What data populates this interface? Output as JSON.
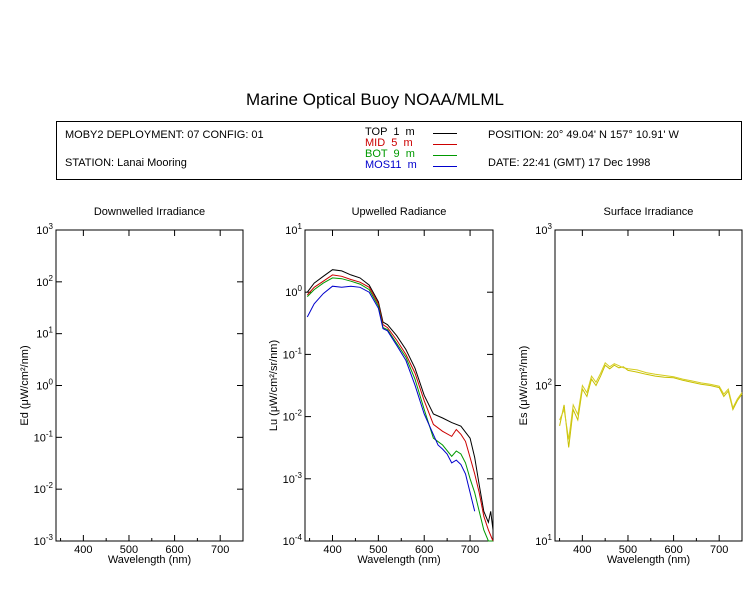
{
  "title": "Marine Optical Buoy NOAA/MLML",
  "info": {
    "deployment": "MOBY2 DEPLOYMENT: 07 CONFIG: 01",
    "station": "STATION: Lanai Mooring",
    "position": "POSITION: 20° 49.04' N   157° 10.91' W",
    "date": "DATE: 22:41 (GMT) 17 Dec 1998"
  },
  "legend": [
    {
      "label": "TOP  1  m",
      "color": "#000000"
    },
    {
      "label": "MID  5  m",
      "color": "#cc0000"
    },
    {
      "label": "BOT  9  m",
      "color": "#009900"
    },
    {
      "label": "MOS11  m",
      "color": "#0000cc"
    }
  ],
  "chart_data": [
    {
      "type": "line",
      "title": "Downwelled Irradiance",
      "xlabel": "Wavelength (nm)",
      "ylabel": "Ed  (μW/cm²/nm)",
      "xlim": [
        340,
        750
      ],
      "ylim": [
        0.001,
        1000
      ],
      "yscale": "log",
      "xticks": [
        400,
        500,
        600,
        700
      ],
      "yticks": [
        {
          "base": "10",
          "exp": "-3"
        },
        {
          "base": "10",
          "exp": "-2"
        },
        {
          "base": "10",
          "exp": "-1"
        },
        {
          "base": "10",
          "exp": "0"
        },
        {
          "base": "10",
          "exp": "1"
        },
        {
          "base": "10",
          "exp": "2"
        },
        {
          "base": "10",
          "exp": "3"
        }
      ],
      "series": []
    },
    {
      "type": "line",
      "title": "Upwelled Radiance",
      "xlabel": "Wavelength (nm)",
      "ylabel": "Lu  (μW/cm²/sr/nm)",
      "xlim": [
        340,
        750
      ],
      "ylim": [
        0.0001,
        10
      ],
      "yscale": "log",
      "xticks": [
        400,
        500,
        600,
        700
      ],
      "yticks": [
        {
          "base": "10",
          "exp": "-4"
        },
        {
          "base": "10",
          "exp": "-3"
        },
        {
          "base": "10",
          "exp": "-2"
        },
        {
          "base": "10",
          "exp": "-1"
        },
        {
          "base": "10",
          "exp": "0"
        },
        {
          "base": "10",
          "exp": "1"
        }
      ],
      "series": [
        {
          "color": "#000000",
          "x": [
            345,
            360,
            380,
            400,
            420,
            440,
            460,
            480,
            500,
            510,
            520,
            540,
            560,
            580,
            600,
            620,
            640,
            660,
            680,
            700,
            710,
            720,
            730,
            740,
            745,
            750
          ],
          "y": [
            1.0,
            1.4,
            1.8,
            2.3,
            2.2,
            1.9,
            1.7,
            1.3,
            0.7,
            0.33,
            0.3,
            0.2,
            0.12,
            0.06,
            0.022,
            0.011,
            0.0095,
            0.008,
            0.007,
            0.0045,
            0.0022,
            0.0008,
            0.0003,
            0.0002,
            0.0003,
            0.00015
          ]
        },
        {
          "color": "#cc0000",
          "x": [
            345,
            360,
            380,
            400,
            420,
            440,
            460,
            480,
            500,
            510,
            520,
            540,
            560,
            580,
            600,
            620,
            640,
            660,
            670,
            680,
            690,
            700,
            710,
            720,
            730,
            740,
            750
          ],
          "y": [
            0.9,
            1.2,
            1.5,
            1.9,
            1.8,
            1.6,
            1.45,
            1.2,
            0.65,
            0.3,
            0.27,
            0.17,
            0.1,
            0.05,
            0.018,
            0.0075,
            0.0058,
            0.0048,
            0.0062,
            0.0052,
            0.004,
            0.0022,
            0.0012,
            0.0006,
            0.00025,
            0.00015,
            0.0001
          ]
        },
        {
          "color": "#009900",
          "x": [
            345,
            360,
            380,
            400,
            420,
            440,
            460,
            480,
            500,
            510,
            520,
            540,
            560,
            580,
            600,
            620,
            640,
            660,
            670,
            680,
            690,
            700,
            710,
            720,
            730,
            740,
            750
          ],
          "y": [
            0.85,
            1.1,
            1.4,
            1.7,
            1.65,
            1.5,
            1.35,
            1.1,
            0.6,
            0.27,
            0.25,
            0.15,
            0.09,
            0.04,
            0.013,
            0.0045,
            0.0035,
            0.0023,
            0.0028,
            0.0025,
            0.0018,
            0.001,
            0.0006,
            0.0003,
            0.00015,
            0.0001,
            0.0001
          ]
        },
        {
          "color": "#0000cc",
          "x": [
            345,
            360,
            380,
            400,
            420,
            440,
            460,
            480,
            500,
            510,
            520,
            540,
            560,
            580,
            600,
            630,
            640,
            650,
            660,
            670,
            680,
            690,
            700,
            710
          ],
          "y": [
            0.4,
            0.65,
            0.95,
            1.25,
            1.2,
            1.25,
            1.2,
            1.0,
            0.55,
            0.26,
            0.24,
            0.14,
            0.08,
            0.032,
            0.011,
            0.0035,
            0.003,
            0.0025,
            0.0018,
            0.002,
            0.0017,
            0.0012,
            0.0006,
            0.0003
          ]
        }
      ]
    },
    {
      "type": "line",
      "title": "Surface Irradiance",
      "xlabel": "Wavelength (nm)",
      "ylabel": "Es  (μW/cm²/nm)",
      "xlim": [
        340,
        750
      ],
      "ylim": [
        10,
        1000
      ],
      "yscale": "log",
      "xticks": [
        400,
        500,
        600,
        700
      ],
      "yticks": [
        {
          "base": "10",
          "exp": "1"
        },
        {
          "base": "10",
          "exp": "2"
        },
        {
          "base": "10",
          "exp": "3"
        }
      ],
      "series": [
        {
          "color": "#c8c000",
          "x": [
            350,
            360,
            370,
            380,
            390,
            400,
            410,
            420,
            430,
            440,
            450,
            460,
            470,
            480,
            490,
            500,
            520,
            540,
            560,
            580,
            600,
            620,
            640,
            660,
            680,
            700,
            710,
            720,
            730,
            740,
            750
          ],
          "y": [
            55,
            75,
            40,
            70,
            60,
            95,
            85,
            110,
            100,
            115,
            135,
            128,
            135,
            130,
            132,
            125,
            122,
            118,
            115,
            113,
            112,
            108,
            105,
            102,
            100,
            97,
            85,
            92,
            70,
            80,
            88
          ]
        },
        {
          "color": "#d4cc20",
          "x": [
            350,
            360,
            370,
            380,
            390,
            400,
            410,
            420,
            430,
            440,
            450,
            460,
            470,
            480,
            490,
            500,
            520,
            540,
            560,
            580,
            600,
            620,
            640,
            660,
            680,
            700,
            710,
            720,
            730,
            740,
            750
          ],
          "y": [
            60,
            70,
            45,
            75,
            65,
            100,
            90,
            115,
            105,
            120,
            140,
            132,
            138,
            134,
            130,
            128,
            126,
            121,
            118,
            116,
            114,
            110,
            107,
            104,
            102,
            99,
            88,
            95,
            72,
            82,
            90
          ]
        }
      ]
    }
  ]
}
